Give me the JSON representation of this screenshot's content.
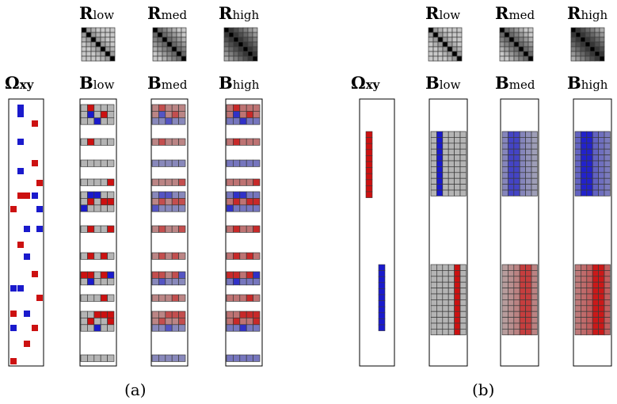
{
  "panels": [
    {
      "id": "a",
      "caption": "(a)",
      "omega_label": {
        "main": "Ω",
        "sub": "xy"
      },
      "r_labels": [
        {
          "main": "R",
          "sub": "low"
        },
        {
          "main": "R",
          "sub": "med"
        },
        {
          "main": "R",
          "sub": "high"
        }
      ],
      "b_labels": [
        {
          "main": "B",
          "sub": "low"
        },
        {
          "main": "B",
          "sub": "med"
        },
        {
          "main": "B",
          "sub": "high"
        }
      ],
      "r_level_darkness": [
        0.35,
        0.6,
        0.85
      ],
      "b_level_strength": [
        0.2,
        0.55,
        1.0
      ]
    },
    {
      "id": "b",
      "caption": "(b)",
      "omega_label": {
        "main": "Ω",
        "sub": "xy"
      },
      "r_labels": [
        {
          "main": "R",
          "sub": "low"
        },
        {
          "main": "R",
          "sub": "med"
        },
        {
          "main": "R",
          "sub": "high"
        }
      ],
      "b_labels": [
        {
          "main": "B",
          "sub": "low"
        },
        {
          "main": "B",
          "sub": "med"
        },
        {
          "main": "B",
          "sub": "high"
        }
      ],
      "r_level_darkness": [
        0.35,
        0.6,
        0.85
      ],
      "b_level_strength": [
        0.2,
        0.55,
        1.0
      ]
    }
  ],
  "colors": {
    "red": "#cc1111",
    "blue": "#1a1acc",
    "gray": "#b4b4b4",
    "grid_line": "#3a3a3a",
    "outline": "#000000"
  }
}
